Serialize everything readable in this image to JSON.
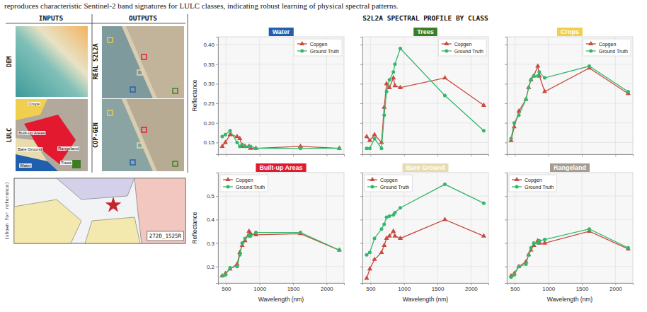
{
  "caption": "reproduces characteristic Sentinel-2 band signatures for LULC classes, indicating robust learning of physical spectral patterns.",
  "headers": {
    "inputs": "INPUTS",
    "outputs": "OUTPUTS",
    "profiles": "S2L2A SPECTRAL PROFILE BY CLASS"
  },
  "row_labels": {
    "dem": "DEM",
    "lulc": "LULC",
    "real": "REAL S2L2A",
    "copgen": "COP-GEN"
  },
  "lulc_labels": [
    "Crops",
    "Built-up Areas",
    "Bare Ground",
    "Rangeland",
    "Water",
    "Trees"
  ],
  "map": {
    "note": "(shown for reference)",
    "tile": "272D_1525R"
  },
  "chart_data": [
    {
      "type": "line",
      "title": "Water",
      "color": "#1f5fae",
      "x": [
        443,
        490,
        560,
        665,
        705,
        740,
        783,
        842,
        865,
        945,
        1610,
        2190
      ],
      "series": [
        {
          "name": "Copgen",
          "color": "#c94a3f",
          "marker": "triangle",
          "values": [
            0.14,
            0.15,
            0.17,
            0.165,
            0.16,
            0.14,
            0.14,
            0.14,
            0.135,
            0.135,
            0.14,
            0.135
          ]
        },
        {
          "name": "Ground Truth",
          "color": "#33b86b",
          "marker": "circle",
          "values": [
            0.165,
            0.17,
            0.18,
            0.15,
            0.14,
            0.145,
            0.14,
            0.14,
            0.14,
            0.135,
            0.135,
            0.135
          ]
        }
      ],
      "xlim": [
        380,
        2260
      ],
      "xticks": [
        500,
        1000,
        1500,
        2000
      ],
      "ylim": [
        0.12,
        0.42
      ],
      "yticks": [
        0.15,
        {
          "value": 0.2,
          "label": "0.20"
        },
        0.25,
        {
          "value": 0.3,
          "label": "0.30"
        },
        0.35,
        {
          "value": 0.4,
          "label": "0.40"
        }
      ],
      "grid": true,
      "legend": "upper right",
      "tick_labels": "y",
      "y_label": "Reflectance"
    },
    {
      "type": "line",
      "title": "Trees",
      "color": "#3b7d23",
      "x": [
        443,
        490,
        560,
        665,
        705,
        740,
        783,
        842,
        865,
        945,
        1610,
        2190
      ],
      "series": [
        {
          "name": "Copgen",
          "color": "#c94a3f",
          "marker": "triangle",
          "values": [
            0.165,
            0.155,
            0.17,
            0.15,
            0.24,
            0.3,
            0.29,
            0.315,
            0.295,
            0.29,
            0.315,
            0.245
          ]
        },
        {
          "name": "Ground Truth",
          "color": "#33b86b",
          "marker": "circle",
          "values": [
            0.135,
            0.135,
            0.16,
            0.135,
            0.22,
            0.28,
            0.31,
            0.33,
            0.35,
            0.39,
            0.27,
            0.18
          ]
        }
      ],
      "xlim": [
        380,
        2260
      ],
      "xticks": [
        500,
        1000,
        1500,
        2000
      ],
      "ylim": [
        0.12,
        0.42
      ],
      "yticks": [
        0.15,
        {
          "value": 0.2,
          "label": "0.20"
        },
        0.25,
        {
          "value": 0.3,
          "label": "0.30"
        },
        0.35,
        {
          "value": 0.4,
          "label": "0.40"
        }
      ],
      "grid": true,
      "legend": "upper right",
      "tick_labels": false
    },
    {
      "type": "line",
      "title": "Crops",
      "color": "#f0cf4f",
      "x": [
        443,
        490,
        560,
        665,
        705,
        740,
        783,
        842,
        865,
        945,
        1610,
        2190
      ],
      "series": [
        {
          "name": "Copgen",
          "color": "#c94a3f",
          "marker": "triangle",
          "values": [
            0.155,
            0.19,
            0.23,
            0.26,
            0.29,
            0.31,
            0.32,
            0.345,
            0.32,
            0.28,
            0.34,
            0.275
          ]
        },
        {
          "name": "Ground Truth",
          "color": "#33b86b",
          "marker": "circle",
          "values": [
            0.16,
            0.2,
            0.22,
            0.26,
            0.29,
            0.31,
            0.32,
            0.32,
            0.33,
            0.315,
            0.345,
            0.28
          ]
        }
      ],
      "xlim": [
        380,
        2260
      ],
      "xticks": [
        500,
        1000,
        1500,
        2000
      ],
      "ylim": [
        0.12,
        0.42
      ],
      "yticks": [
        0.15,
        {
          "value": 0.2,
          "label": "0.20"
        },
        0.25,
        {
          "value": 0.3,
          "label": "0.30"
        },
        0.35,
        {
          "value": 0.4,
          "label": "0.40"
        }
      ],
      "grid": true,
      "legend": "upper right",
      "tick_labels": false
    },
    {
      "type": "line",
      "title": "Built-up Areas",
      "color": "#e31a2f",
      "x": [
        443,
        490,
        560,
        665,
        705,
        740,
        783,
        842,
        865,
        945,
        1610,
        2190
      ],
      "series": [
        {
          "name": "Copgen",
          "color": "#c94a3f",
          "marker": "triangle",
          "values": [
            0.16,
            0.17,
            0.19,
            0.21,
            0.26,
            0.29,
            0.31,
            0.35,
            0.34,
            0.335,
            0.34,
            0.27
          ]
        },
        {
          "name": "Ground Truth",
          "color": "#33b86b",
          "marker": "circle",
          "values": [
            0.16,
            0.165,
            0.195,
            0.2,
            0.25,
            0.3,
            0.32,
            0.33,
            0.33,
            0.345,
            0.345,
            0.27
          ]
        }
      ],
      "xlim": [
        380,
        2260
      ],
      "xticks": [
        500,
        1000,
        1500,
        2000
      ],
      "ylim": [
        0.13,
        0.6
      ],
      "yticks": [
        0.2,
        0.3,
        0.4,
        0.5
      ],
      "grid": true,
      "legend": "upper left",
      "x_label": "Wavelength (nm)",
      "y_label": "Reflectance"
    },
    {
      "type": "line",
      "title": "Bare Ground",
      "color": "#e6dcb0",
      "x": [
        443,
        490,
        560,
        665,
        705,
        740,
        783,
        842,
        865,
        945,
        1610,
        2190
      ],
      "series": [
        {
          "name": "Copgen",
          "color": "#c94a3f",
          "marker": "triangle",
          "values": [
            0.15,
            0.19,
            0.23,
            0.26,
            0.29,
            0.32,
            0.33,
            0.35,
            0.33,
            0.32,
            0.4,
            0.33
          ]
        },
        {
          "name": "Ground Truth",
          "color": "#33b86b",
          "marker": "circle",
          "values": [
            0.25,
            0.26,
            0.32,
            0.36,
            0.38,
            0.41,
            0.415,
            0.42,
            0.43,
            0.45,
            0.55,
            0.47
          ]
        }
      ],
      "xlim": [
        380,
        2260
      ],
      "xticks": [
        500,
        1000,
        1500,
        2000
      ],
      "ylim": [
        0.13,
        0.6
      ],
      "yticks": [
        0.2,
        0.3,
        0.4,
        0.5
      ],
      "grid": true,
      "legend": "upper left",
      "tick_labels": "x",
      "x_label": "Wavelength (nm)"
    },
    {
      "type": "line",
      "title": "Rangeland",
      "color": "#a69c90",
      "x": [
        443,
        490,
        560,
        665,
        705,
        740,
        783,
        842,
        865,
        945,
        1610,
        2190
      ],
      "series": [
        {
          "name": "Copgen",
          "color": "#c94a3f",
          "marker": "triangle",
          "values": [
            0.16,
            0.17,
            0.2,
            0.22,
            0.25,
            0.27,
            0.29,
            0.31,
            0.3,
            0.3,
            0.35,
            0.275
          ]
        },
        {
          "name": "Ground Truth",
          "color": "#33b86b",
          "marker": "circle",
          "values": [
            0.155,
            0.165,
            0.2,
            0.21,
            0.25,
            0.28,
            0.3,
            0.3,
            0.31,
            0.315,
            0.36,
            0.28
          ]
        }
      ],
      "xlim": [
        380,
        2260
      ],
      "xticks": [
        500,
        1000,
        1500,
        2000
      ],
      "ylim": [
        0.13,
        0.6
      ],
      "yticks": [
        0.2,
        0.3,
        0.4,
        0.5
      ],
      "grid": true,
      "legend": "upper left",
      "tick_labels": "x",
      "x_label": "Wavelength (nm)"
    }
  ]
}
